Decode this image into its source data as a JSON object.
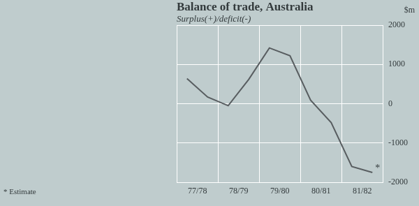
{
  "chart_data": {
    "type": "line",
    "title": "Balance of trade, Australia",
    "subtitle": "Surplus(+)/deficit(-)",
    "y_label": "$m",
    "categories": [
      "77/78",
      null,
      "78/79",
      null,
      "79/80",
      null,
      "80/81",
      null,
      "81/82",
      null
    ],
    "values": [
      640,
      170,
      -50,
      620,
      1420,
      1220,
      90,
      -480,
      -1600,
      -1750
    ],
    "color": "#585d60",
    "ylim": [
      -2000,
      2000
    ],
    "yticks": [
      -2000,
      -1000,
      0,
      1000,
      2000
    ],
    "grid": true,
    "estimate_marker": "*",
    "footnote": "* Estimate"
  }
}
